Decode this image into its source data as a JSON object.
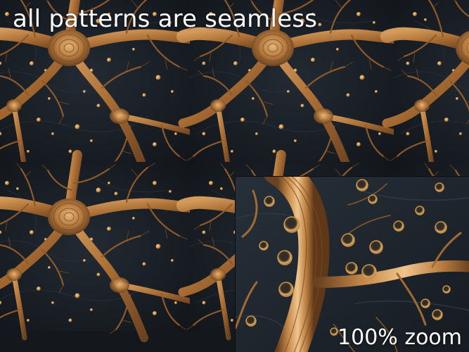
{
  "image": {
    "caption": "all patterns are seamless",
    "zoom_label": "100% zoom",
    "colors": {
      "background": "#1b2027",
      "branch": "#b57a3e",
      "branch_highlight": "#e0b07a",
      "branch_shadow": "#6b4220",
      "dot": "#d9a55c",
      "caption_text": "#ffffff"
    }
  }
}
